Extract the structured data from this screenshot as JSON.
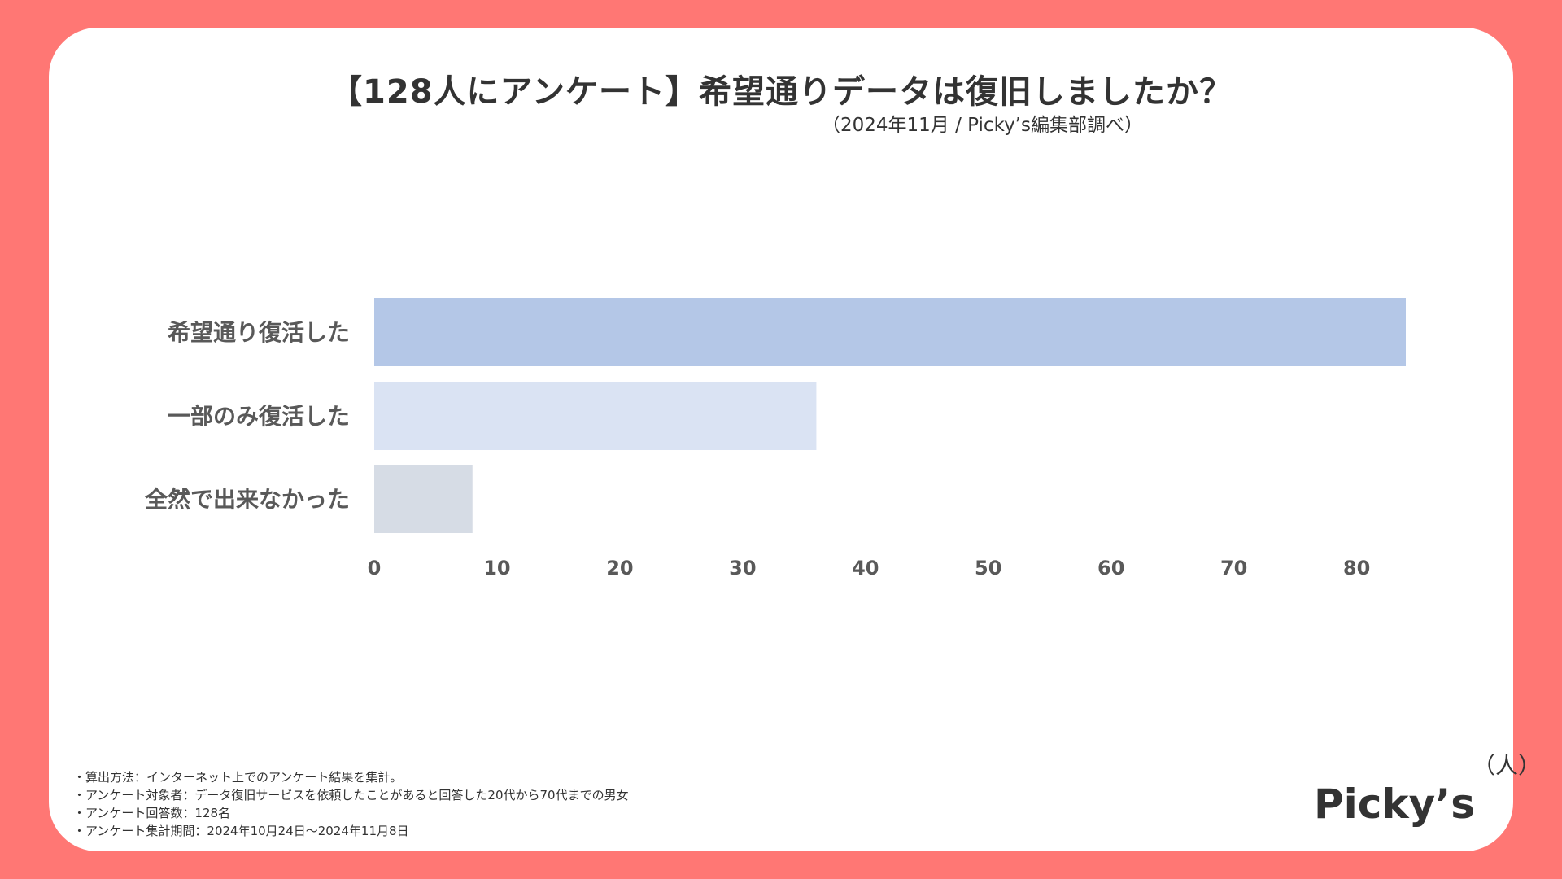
{
  "chart_data": {
    "type": "bar",
    "orientation": "horizontal",
    "title": "【128人にアンケート】希望通りデータは復旧しましたか？",
    "subtitle": "（2024年11月 / Picky’s編集部調べ）",
    "categories": [
      "希望通り復活した",
      "一部のみ復活した",
      "全然で出来なかった"
    ],
    "values": [
      84,
      36,
      8
    ],
    "bar_colors": [
      "#b4c7e7",
      "#dae3f3",
      "#d6dce5"
    ],
    "xlim": [
      0,
      84
    ],
    "xticks": [
      0,
      10,
      20,
      30,
      40,
      50,
      60,
      70,
      80
    ],
    "xlabel": "",
    "ylabel": "",
    "grid": false
  },
  "notes": [
    "・算出方法：インターネット上でのアンケート結果を集計。",
    "・アンケート対象者：データ復旧サービスを依頼したことがあると回答した20代から70代までの男女",
    "・アンケート回答数：128名",
    "・アンケート集計期間：2024年10月24日〜2024年11月8日"
  ],
  "logo": {
    "word": "Picky’s",
    "mark": "（人）"
  },
  "colors": {
    "background": "#ff7774",
    "card": "#ffffff",
    "text": "#333333",
    "axis_text": "#595959"
  }
}
